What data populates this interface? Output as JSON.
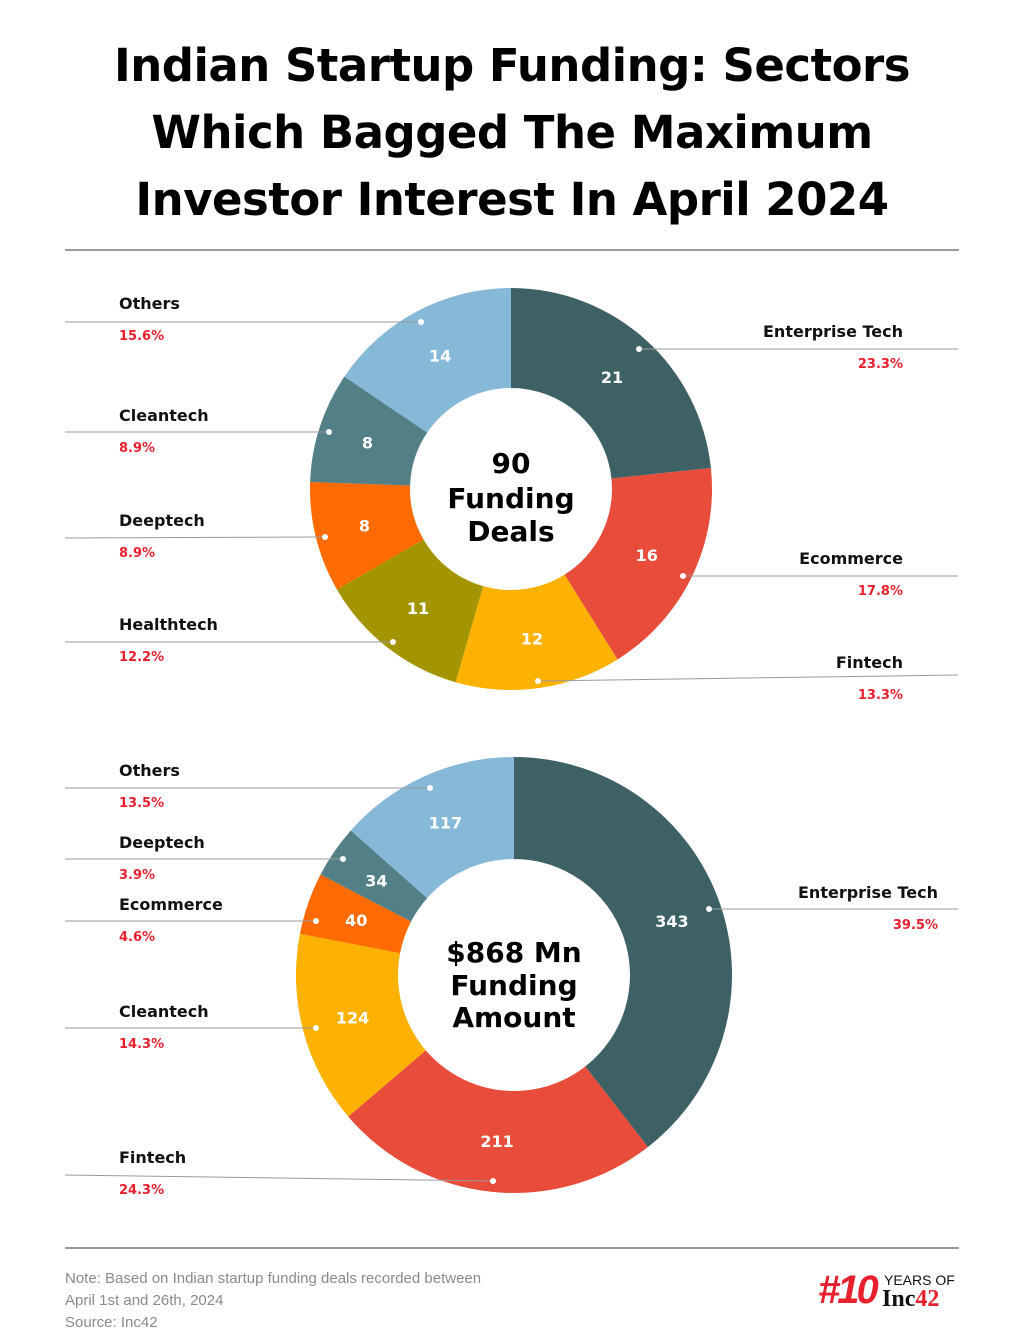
{
  "title": [
    "Indian Startup Funding: Sectors",
    "Which Bagged The Maximum",
    "Investor Interest In April 2024"
  ],
  "chart_data": [
    {
      "type": "pie",
      "donut": true,
      "center_text": [
        "90",
        "Funding",
        "Deals"
      ],
      "slices": [
        {
          "label": "Enterprise Tech",
          "value": 21,
          "percent": "23.3%",
          "color": "#3d6164"
        },
        {
          "label": "Ecommerce",
          "value": 16,
          "percent": "17.8%",
          "color": "#e84c3a"
        },
        {
          "label": "Fintech",
          "value": 12,
          "percent": "13.3%",
          "color": "#fdb100"
        },
        {
          "label": "Healthtech",
          "value": 11,
          "percent": "12.2%",
          "color": "#a39500"
        },
        {
          "label": "Deeptech",
          "value": 8,
          "percent": "8.9%",
          "color": "#ff6b00"
        },
        {
          "label": "Cleantech",
          "value": 8,
          "percent": "8.9%",
          "color": "#537f87"
        },
        {
          "label": "Others",
          "value": 14,
          "percent": "15.6%",
          "color": "#86b8d8"
        }
      ]
    },
    {
      "type": "pie",
      "donut": true,
      "center_text": [
        "$868 Mn",
        "Funding",
        "Amount"
      ],
      "slices": [
        {
          "label": "Enterprise Tech",
          "value": 343,
          "percent": "39.5%",
          "color": "#3d6164"
        },
        {
          "label": "Fintech",
          "value": 211,
          "percent": "24.3%",
          "color": "#e84c3a"
        },
        {
          "label": "Cleantech",
          "value": 124,
          "percent": "14.3%",
          "color": "#fdb100"
        },
        {
          "label": "Ecommerce",
          "value": 40,
          "percent": "4.6%",
          "color": "#ff6b00"
        },
        {
          "label": "Deeptech",
          "value": 34,
          "percent": "3.9%",
          "color": "#537f87"
        },
        {
          "label": "Others",
          "value": 117,
          "percent": "13.5%",
          "color": "#86b8d8"
        }
      ]
    }
  ],
  "footer": {
    "note": [
      "Note: Based on Indian startup funding deals recorded between",
      "April 1st and 26th, 2024",
      "Source: Inc42"
    ],
    "logo": {
      "hash": "#10",
      "years": "YEARS OF",
      "brand": "Inc",
      "brand_num": "42"
    }
  },
  "colors": {
    "percent_text": "#e8202e",
    "leader_line": "#9a9a9a"
  }
}
